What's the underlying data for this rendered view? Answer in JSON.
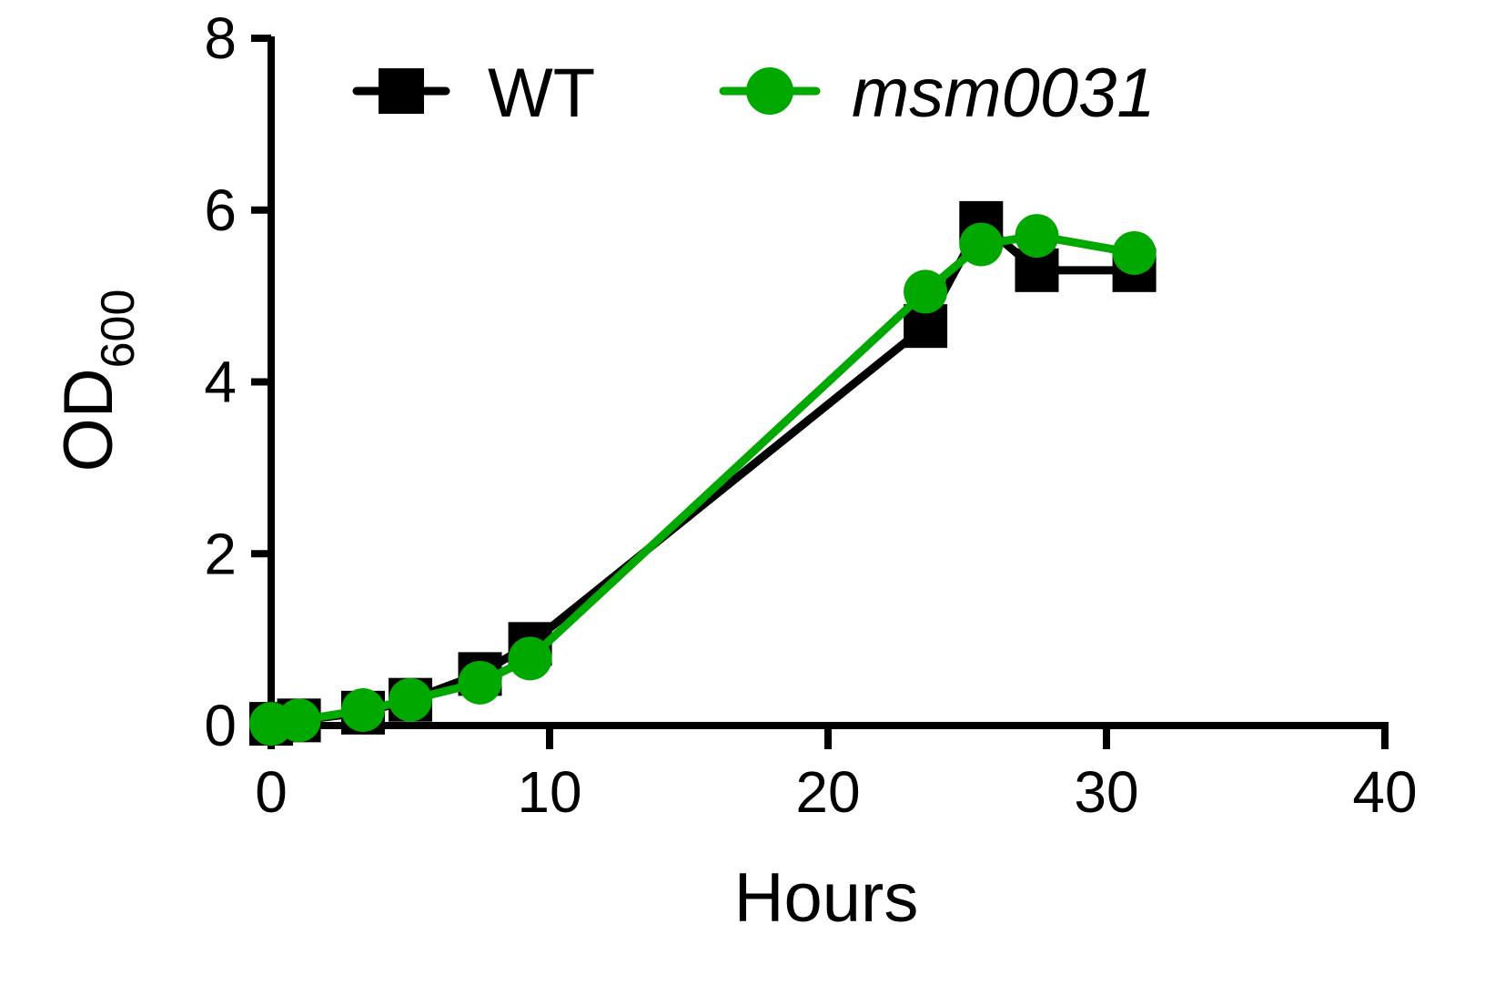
{
  "chart_data": {
    "type": "line",
    "title": "",
    "xlabel": "Hours",
    "ylabel_main": "OD",
    "ylabel_sub": "600",
    "xlim": [
      0,
      40
    ],
    "ylim": [
      0,
      8
    ],
    "x_ticks": [
      0,
      10,
      20,
      30,
      40
    ],
    "y_ticks": [
      0,
      2,
      4,
      6,
      8
    ],
    "x_tick_labels": [
      "0",
      "10",
      "20",
      "30",
      "40"
    ],
    "y_tick_labels": [
      "0",
      "2",
      "4",
      "6",
      "8"
    ],
    "grid": false,
    "legend_position": "top",
    "series": [
      {
        "name": "WT",
        "italic": false,
        "color": "#000000",
        "marker": "square",
        "x": [
          0,
          1,
          3.3,
          5,
          7.5,
          9.3,
          23.5,
          25.5,
          27.5,
          31
        ],
        "y": [
          0.02,
          0.06,
          0.15,
          0.3,
          0.6,
          0.95,
          4.65,
          5.85,
          5.3,
          5.3
        ]
      },
      {
        "name": "msm0031",
        "italic": true,
        "color": "#00a800",
        "marker": "circle",
        "x": [
          0,
          1,
          3.3,
          5,
          7.5,
          9.3,
          23.5,
          25.5,
          27.5,
          31
        ],
        "y": [
          0.02,
          0.06,
          0.18,
          0.3,
          0.5,
          0.78,
          5.05,
          5.6,
          5.7,
          5.5
        ]
      }
    ]
  }
}
